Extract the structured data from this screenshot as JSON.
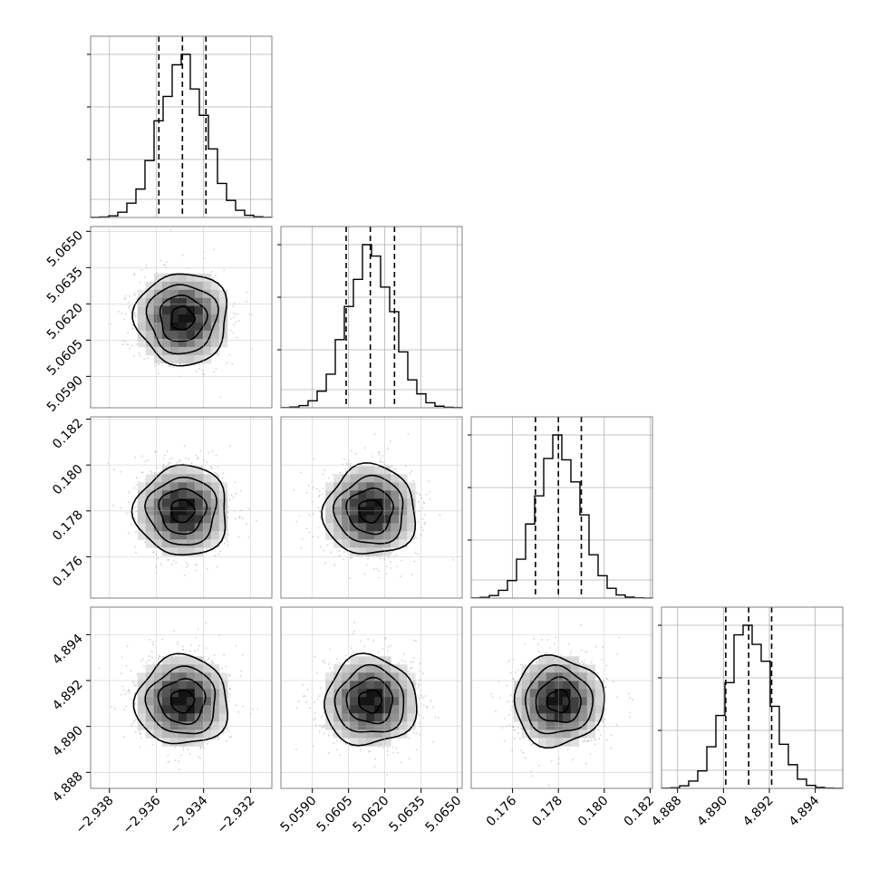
{
  "chart_data": {
    "type": "corner",
    "grid": true,
    "colors": {
      "hist": "#000000",
      "contour": "#000000",
      "points": "#9a9a9a",
      "grid": "#b0b0b0",
      "frame": "#808080"
    },
    "parameters": [
      {
        "center": -2.9349,
        "sigma": 0.00098,
        "quantiles": [
          -2.9359,
          -2.9349,
          -2.9339
        ],
        "range": [
          -2.9388,
          -2.9311
        ],
        "ticks": [
          {
            "value": -2.938,
            "label": "−2.938"
          },
          {
            "value": -2.936,
            "label": "−2.936"
          },
          {
            "value": -2.934,
            "label": "−2.934"
          },
          {
            "value": -2.932,
            "label": "−2.932"
          }
        ]
      },
      {
        "center": 5.0614,
        "sigma": 0.00095,
        "quantiles": [
          5.0604,
          5.0614,
          5.0624
        ],
        "range": [
          5.0577,
          5.0652
        ],
        "ticks": [
          {
            "value": 5.059,
            "label": "5.0590"
          },
          {
            "value": 5.0605,
            "label": "5.0605"
          },
          {
            "value": 5.062,
            "label": "5.0620"
          },
          {
            "value": 5.0635,
            "label": "5.0635"
          },
          {
            "value": 5.065,
            "label": "5.0650"
          }
        ]
      },
      {
        "center": 0.178,
        "sigma": 0.00098,
        "quantiles": [
          0.177,
          0.178,
          0.179
        ],
        "range": [
          0.1742,
          0.1821
        ],
        "ticks": [
          {
            "value": 0.176,
            "label": "0.176"
          },
          {
            "value": 0.178,
            "label": "0.178"
          },
          {
            "value": 0.18,
            "label": "0.180"
          },
          {
            "value": 0.182,
            "label": "0.182"
          }
        ]
      },
      {
        "center": 4.8911,
        "sigma": 0.00097,
        "quantiles": [
          4.8901,
          4.8911,
          4.8921
        ],
        "range": [
          4.8873,
          4.8952
        ],
        "ticks": [
          {
            "value": 4.888,
            "label": "4.888"
          },
          {
            "value": 4.89,
            "label": "4.890"
          },
          {
            "value": 4.892,
            "label": "4.892"
          },
          {
            "value": 4.894,
            "label": "4.894"
          }
        ]
      }
    ]
  }
}
